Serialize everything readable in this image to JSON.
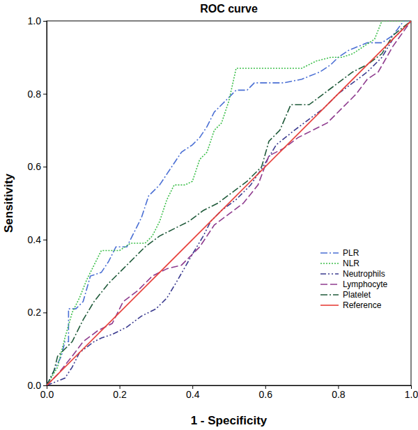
{
  "chart_data": {
    "type": "line",
    "title": "ROC curve",
    "x_label": "1 - Specificity",
    "y_label": "Sensitivity",
    "xlim": [
      0,
      1
    ],
    "ylim": [
      0,
      1
    ],
    "xticks": [
      {
        "value": 0,
        "label": "0.0"
      },
      {
        "value": 0.2,
        "label": "0.2"
      },
      {
        "value": 0.4,
        "label": "0.4"
      },
      {
        "value": 0.6,
        "label": "0.6"
      },
      {
        "value": 0.8,
        "label": "0.8"
      },
      {
        "value": 1,
        "label": "1.0"
      }
    ],
    "yticks": [
      {
        "value": 0,
        "label": "0.0"
      },
      {
        "value": 0.2,
        "label": "0.2"
      },
      {
        "value": 0.4,
        "label": "0.4"
      },
      {
        "value": 0.6,
        "label": "0.6"
      },
      {
        "value": 0.8,
        "label": "0.8"
      },
      {
        "value": 1,
        "label": "1.0"
      }
    ],
    "grid": false,
    "legend": "lower right",
    "series": [
      {
        "name": "PLR",
        "color": "#4a6fd4",
        "line_style": "dashdot",
        "x": [
          0,
          0.04,
          0.05,
          0.06,
          0.06,
          0.08,
          0.1,
          0.12,
          0.15,
          0.17,
          0.19,
          0.22,
          0.24,
          0.26,
          0.28,
          0.31,
          0.33,
          0.35,
          0.37,
          0.4,
          0.42,
          0.44,
          0.46,
          0.48,
          0.5,
          0.52,
          0.55,
          0.57,
          0.6,
          0.65,
          0.7,
          0.75,
          0.78,
          0.8,
          0.83,
          0.88,
          0.92,
          0.95,
          0.98,
          1
        ],
        "values": [
          0,
          0.08,
          0.12,
          0.12,
          0.21,
          0.21,
          0.23,
          0.3,
          0.31,
          0.34,
          0.38,
          0.38,
          0.42,
          0.46,
          0.52,
          0.55,
          0.58,
          0.61,
          0.64,
          0.66,
          0.68,
          0.71,
          0.75,
          0.77,
          0.79,
          0.81,
          0.81,
          0.83,
          0.83,
          0.83,
          0.84,
          0.86,
          0.88,
          0.9,
          0.92,
          0.94,
          0.94,
          0.96,
          1,
          1
        ]
      },
      {
        "name": "NLR",
        "color": "#3cbf4a",
        "line_style": "dotted",
        "x": [
          0,
          0.03,
          0.05,
          0.07,
          0.09,
          0.11,
          0.13,
          0.15,
          0.2,
          0.23,
          0.27,
          0.29,
          0.31,
          0.33,
          0.35,
          0.38,
          0.4,
          0.42,
          0.44,
          0.46,
          0.48,
          0.5,
          0.52,
          0.56,
          0.65,
          0.7,
          0.74,
          0.78,
          0.81,
          0.84,
          0.9,
          0.92,
          1
        ],
        "values": [
          0,
          0.05,
          0.13,
          0.2,
          0.24,
          0.29,
          0.33,
          0.37,
          0.37,
          0.39,
          0.39,
          0.41,
          0.45,
          0.51,
          0.55,
          0.55,
          0.56,
          0.62,
          0.64,
          0.7,
          0.72,
          0.78,
          0.87,
          0.87,
          0.87,
          0.87,
          0.89,
          0.9,
          0.9,
          0.91,
          0.95,
          1,
          1
        ]
      },
      {
        "name": "Neutrophils",
        "color": "#3b3b8f",
        "line_style": "dashdotdot",
        "x": [
          0,
          0.05,
          0.07,
          0.09,
          0.13,
          0.15,
          0.18,
          0.22,
          0.26,
          0.3,
          0.33,
          0.36,
          0.4,
          0.43,
          0.45,
          0.48,
          0.52,
          0.56,
          0.6,
          0.63,
          0.68,
          0.72,
          0.76,
          0.8,
          0.84,
          0.88,
          0.92,
          0.95,
          0.98,
          1
        ],
        "values": [
          0,
          0.02,
          0.05,
          0.09,
          0.12,
          0.13,
          0.14,
          0.16,
          0.19,
          0.21,
          0.24,
          0.29,
          0.36,
          0.41,
          0.45,
          0.48,
          0.51,
          0.55,
          0.61,
          0.66,
          0.7,
          0.73,
          0.76,
          0.8,
          0.83,
          0.86,
          0.9,
          0.95,
          0.98,
          1
        ]
      },
      {
        "name": "Lymphocyte",
        "color": "#8e3b8e",
        "line_style": "longdash",
        "x": [
          0,
          0.03,
          0.07,
          0.1,
          0.14,
          0.18,
          0.21,
          0.25,
          0.29,
          0.33,
          0.37,
          0.42,
          0.46,
          0.5,
          0.54,
          0.58,
          0.61,
          0.65,
          0.69,
          0.73,
          0.77,
          0.81,
          0.85,
          0.88,
          0.91,
          0.95,
          1
        ],
        "values": [
          0,
          0.03,
          0.08,
          0.12,
          0.15,
          0.17,
          0.23,
          0.26,
          0.3,
          0.32,
          0.33,
          0.38,
          0.44,
          0.47,
          0.5,
          0.55,
          0.63,
          0.65,
          0.68,
          0.7,
          0.72,
          0.76,
          0.8,
          0.84,
          0.86,
          0.93,
          1
        ]
      },
      {
        "name": "Platelet",
        "color": "#1f5a3a",
        "line_style": "dashdot",
        "x": [
          0,
          0.02,
          0.03,
          0.07,
          0.1,
          0.13,
          0.17,
          0.21,
          0.24,
          0.27,
          0.31,
          0.35,
          0.39,
          0.43,
          0.47,
          0.51,
          0.55,
          0.59,
          0.61,
          0.64,
          0.67,
          0.7,
          0.72,
          0.76,
          0.8,
          0.84,
          0.88,
          0.92,
          0.95,
          1
        ],
        "values": [
          0,
          0.04,
          0.08,
          0.12,
          0.18,
          0.23,
          0.28,
          0.32,
          0.35,
          0.38,
          0.41,
          0.43,
          0.45,
          0.48,
          0.5,
          0.53,
          0.56,
          0.6,
          0.67,
          0.7,
          0.77,
          0.77,
          0.77,
          0.8,
          0.83,
          0.86,
          0.88,
          0.91,
          0.96,
          1
        ]
      },
      {
        "name": "Reference",
        "color": "#e8403a",
        "line_style": "solid",
        "x": [
          0,
          1
        ],
        "values": [
          0,
          1
        ]
      }
    ]
  }
}
